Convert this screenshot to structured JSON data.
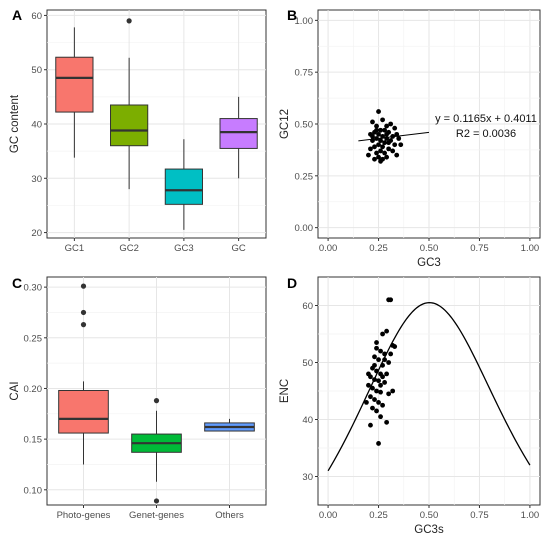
{
  "chart_data": [
    {
      "panel": "A",
      "type": "box",
      "xlabel": "",
      "ylabel": "GC content",
      "ylim": [
        19,
        61
      ],
      "yticks": [
        20,
        30,
        40,
        50,
        60
      ],
      "categories": [
        "GC1",
        "GC2",
        "GC3",
        "GC"
      ],
      "colors": [
        "#F8766D",
        "#7CAE00",
        "#00BFC4",
        "#C77CFF"
      ],
      "boxes": [
        {
          "min": 33.8,
          "q1": 42.2,
          "median": 48.5,
          "q3": 52.3,
          "max": 57.8,
          "outliers": []
        },
        {
          "min": 28.0,
          "q1": 36.0,
          "median": 38.8,
          "q3": 43.5,
          "max": 52.2,
          "outliers": [
            59.0
          ]
        },
        {
          "min": 20.5,
          "q1": 25.2,
          "median": 27.8,
          "q3": 31.7,
          "max": 37.2,
          "outliers": []
        },
        {
          "min": 30.0,
          "q1": 35.5,
          "median": 38.5,
          "q3": 41.0,
          "max": 45.0,
          "outliers": []
        }
      ]
    },
    {
      "panel": "B",
      "type": "scatter",
      "xlabel": "GC3",
      "ylabel": "GC12",
      "xlim": [
        -0.05,
        1.05
      ],
      "ylim": [
        -0.05,
        1.05
      ],
      "xticks": [
        "0.00",
        "0.25",
        "0.50",
        "0.75",
        "1.00"
      ],
      "yticks": [
        "0.00",
        "0.25",
        "0.50",
        "0.75",
        "1.00"
      ],
      "regression": {
        "slope": 0.1165,
        "intercept": 0.4011,
        "x_range": [
          0.15,
          0.5
        ]
      },
      "annotation": [
        "y = 0.1165x + 0.4011",
        "R2 = 0.0036"
      ],
      "points": [
        [
          0.25,
          0.56
        ],
        [
          0.27,
          0.52
        ],
        [
          0.22,
          0.51
        ],
        [
          0.24,
          0.49
        ],
        [
          0.29,
          0.49
        ],
        [
          0.31,
          0.5
        ],
        [
          0.33,
          0.48
        ],
        [
          0.26,
          0.47
        ],
        [
          0.28,
          0.47
        ],
        [
          0.23,
          0.46
        ],
        [
          0.3,
          0.46
        ],
        [
          0.34,
          0.45
        ],
        [
          0.25,
          0.45
        ],
        [
          0.21,
          0.45
        ],
        [
          0.27,
          0.44
        ],
        [
          0.32,
          0.44
        ],
        [
          0.24,
          0.43
        ],
        [
          0.29,
          0.43
        ],
        [
          0.35,
          0.43
        ],
        [
          0.22,
          0.42
        ],
        [
          0.26,
          0.42
        ],
        [
          0.31,
          0.42
        ],
        [
          0.28,
          0.41
        ],
        [
          0.25,
          0.4
        ],
        [
          0.33,
          0.4
        ],
        [
          0.23,
          0.39
        ],
        [
          0.27,
          0.39
        ],
        [
          0.3,
          0.38
        ],
        [
          0.21,
          0.38
        ],
        [
          0.26,
          0.37
        ],
        [
          0.32,
          0.37
        ],
        [
          0.24,
          0.36
        ],
        [
          0.28,
          0.36
        ],
        [
          0.2,
          0.35
        ],
        [
          0.34,
          0.35
        ],
        [
          0.25,
          0.34
        ],
        [
          0.29,
          0.34
        ],
        [
          0.23,
          0.33
        ],
        [
          0.27,
          0.33
        ],
        [
          0.26,
          0.32
        ],
        [
          0.3,
          0.41
        ],
        [
          0.22,
          0.44
        ],
        [
          0.36,
          0.4
        ],
        [
          0.24,
          0.47
        ],
        [
          0.29,
          0.45
        ]
      ]
    },
    {
      "panel": "C",
      "type": "box",
      "xlabel": "",
      "ylabel": "CAI",
      "ylim": [
        0.085,
        0.31
      ],
      "yticks": [
        "0.10",
        "0.15",
        "0.20",
        "0.25",
        "0.30"
      ],
      "categories": [
        "Photo-genes",
        "Genet-genes",
        "Others"
      ],
      "colors": [
        "#F8766D",
        "#00BA38",
        "#619CFF"
      ],
      "boxes": [
        {
          "min": 0.125,
          "q1": 0.156,
          "median": 0.17,
          "q3": 0.198,
          "max": 0.207,
          "outliers": [
            0.301,
            0.275,
            0.263
          ]
        },
        {
          "min": 0.108,
          "q1": 0.137,
          "median": 0.146,
          "q3": 0.155,
          "max": 0.178,
          "outliers": [
            0.188,
            0.089
          ]
        },
        {
          "min": 0.158,
          "q1": 0.158,
          "median": 0.162,
          "q3": 0.166,
          "max": 0.17,
          "outliers": []
        }
      ]
    },
    {
      "panel": "D",
      "type": "scatter",
      "xlabel": "GC3s",
      "ylabel": "ENC",
      "xlim": [
        -0.05,
        1.05
      ],
      "ylim": [
        25,
        65
      ],
      "xticks": [
        "0.00",
        "0.25",
        "0.50",
        "0.75",
        "1.00"
      ],
      "yticks": [
        "30",
        "40",
        "50",
        "60"
      ],
      "expected_curve": "ENC = 2 + s + 29 / (s^2 + (1 - s)^2)",
      "points": [
        [
          0.3,
          61.0
        ],
        [
          0.31,
          61.0
        ],
        [
          0.27,
          55.0
        ],
        [
          0.29,
          55.5
        ],
        [
          0.32,
          53.0
        ],
        [
          0.33,
          52.8
        ],
        [
          0.24,
          52.5
        ],
        [
          0.26,
          52.0
        ],
        [
          0.28,
          51.5
        ],
        [
          0.23,
          51.0
        ],
        [
          0.25,
          50.5
        ],
        [
          0.3,
          50.0
        ],
        [
          0.27,
          49.5
        ],
        [
          0.22,
          49.0
        ],
        [
          0.24,
          48.5
        ],
        [
          0.26,
          48.0
        ],
        [
          0.29,
          48.0
        ],
        [
          0.21,
          47.5
        ],
        [
          0.23,
          47.0
        ],
        [
          0.25,
          46.8
        ],
        [
          0.28,
          46.5
        ],
        [
          0.2,
          46.0
        ],
        [
          0.22,
          45.5
        ],
        [
          0.24,
          45.0
        ],
        [
          0.26,
          44.8
        ],
        [
          0.3,
          44.5
        ],
        [
          0.21,
          44.0
        ],
        [
          0.23,
          43.5
        ],
        [
          0.25,
          43.0
        ],
        [
          0.27,
          42.5
        ],
        [
          0.19,
          43.0
        ],
        [
          0.22,
          42.0
        ],
        [
          0.24,
          41.5
        ],
        [
          0.26,
          40.5
        ],
        [
          0.29,
          39.5
        ],
        [
          0.21,
          39.0
        ],
        [
          0.25,
          35.8
        ],
        [
          0.27,
          47.5
        ],
        [
          0.32,
          45.0
        ],
        [
          0.23,
          49.5
        ],
        [
          0.28,
          50.5
        ],
        [
          0.2,
          48.0
        ],
        [
          0.31,
          51.5
        ],
        [
          0.24,
          53.5
        ],
        [
          0.26,
          46.0
        ]
      ]
    }
  ]
}
